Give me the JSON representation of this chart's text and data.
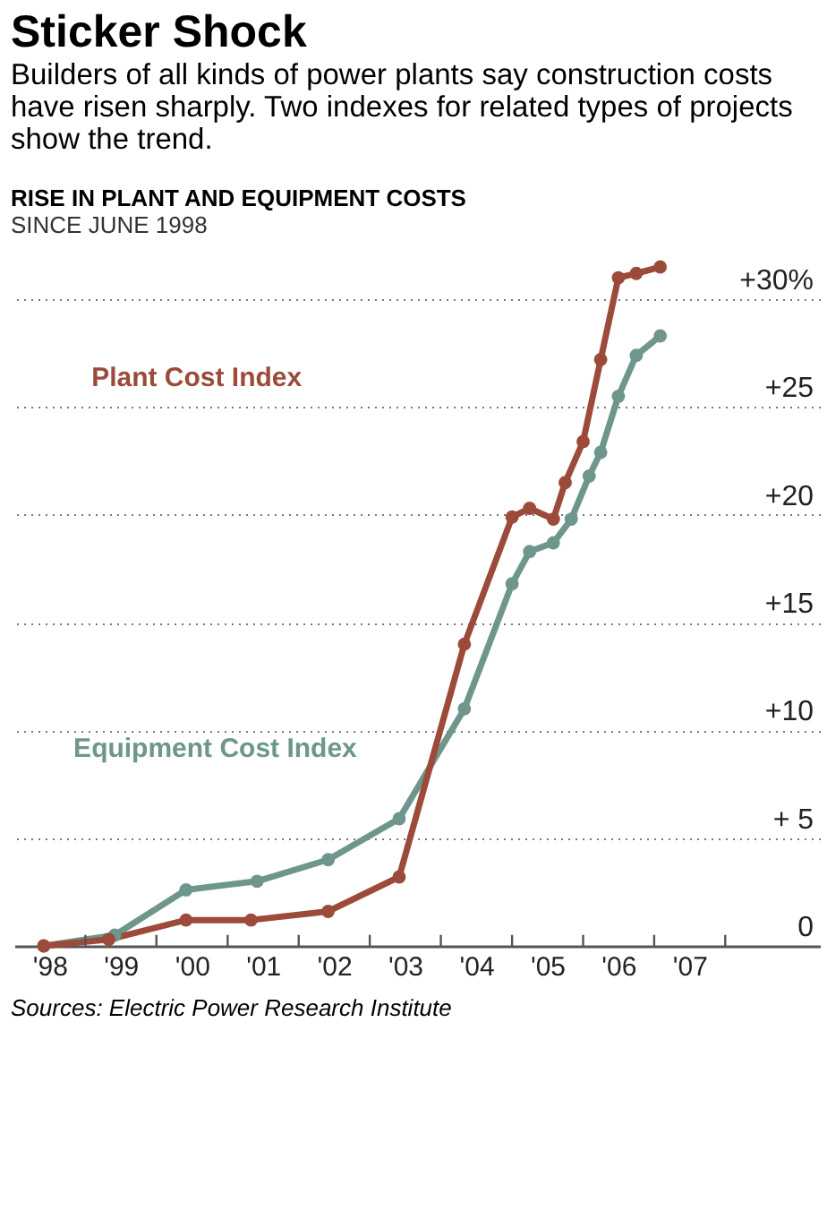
{
  "chart_data": {
    "type": "line",
    "title": "Sticker Shock",
    "subtitle": "Builders of all kinds of power plants say construction costs have risen sharply. Two indexes for related types of projects show the trend.",
    "ylabel": "RISE IN PLANT AND EQUIPMENT COSTS",
    "annotations": [
      "SINCE JUNE 1998",
      "Sources: Electric Power Research Institute"
    ],
    "series": [
      {
        "name": "Equipment Cost Index",
        "color": "#6e968c",
        "x": [
          "1998-06",
          "1999-06",
          "2000-06",
          "2001-06",
          "2002-06",
          "2003-06",
          "2004-05",
          "2005-01",
          "2005-04",
          "2005-08",
          "2005-11",
          "2006-02",
          "2006-04",
          "2006-07",
          "2006-10",
          "2007-02"
        ],
        "values": [
          0,
          0.5,
          2.6,
          3.0,
          4.0,
          5.9,
          11.0,
          16.8,
          18.3,
          18.7,
          19.8,
          21.8,
          22.9,
          25.5,
          27.4,
          28.3
        ]
      },
      {
        "name": "Plant Cost Index",
        "color": "#9c4a3a",
        "x": [
          "1998-06",
          "1999-05",
          "2000-06",
          "2001-05",
          "2002-06",
          "2003-06",
          "2004-05",
          "2005-01",
          "2005-04",
          "2005-08",
          "2005-10",
          "2006-01",
          "2006-04",
          "2006-07",
          "2006-10",
          "2007-02"
        ],
        "values": [
          0,
          0.3,
          1.2,
          1.2,
          1.6,
          3.2,
          14.0,
          19.9,
          20.3,
          19.8,
          21.5,
          23.4,
          27.2,
          31.0,
          31.2,
          31.5
        ]
      }
    ],
    "xlim": [
      "1998-01",
      "2009-05"
    ],
    "xticks": [
      {
        "value": "1998-07",
        "label": "'98"
      },
      {
        "value": "1999-01",
        "label": null
      },
      {
        "value": "1999-07",
        "label": "'99"
      },
      {
        "value": "2000-01",
        "label": null
      },
      {
        "value": "2000-07",
        "label": "'00"
      },
      {
        "value": "2001-01",
        "label": null
      },
      {
        "value": "2001-07",
        "label": "'01"
      },
      {
        "value": "2002-01",
        "label": null
      },
      {
        "value": "2002-07",
        "label": "'02"
      },
      {
        "value": "2003-01",
        "label": null
      },
      {
        "value": "2003-07",
        "label": "'03"
      },
      {
        "value": "2004-01",
        "label": null
      },
      {
        "value": "2004-07",
        "label": "'04"
      },
      {
        "value": "2005-01",
        "label": null
      },
      {
        "value": "2005-07",
        "label": "'05"
      },
      {
        "value": "2006-01",
        "label": null
      },
      {
        "value": "2006-07",
        "label": "'06"
      },
      {
        "value": "2007-01",
        "label": null
      },
      {
        "value": "2007-07",
        "label": "'07"
      },
      {
        "value": "2008-01",
        "label": null
      }
    ],
    "ylim": [
      0,
      32
    ],
    "yticks": [
      {
        "value": 0,
        "label": "0"
      },
      {
        "value": 5,
        "label": "+ 5"
      },
      {
        "value": 10,
        "label": "+10"
      },
      {
        "value": 15,
        "label": "+15"
      },
      {
        "value": 20,
        "label": "+20"
      },
      {
        "value": 25,
        "label": "+25"
      },
      {
        "value": 30,
        "label": "+30%"
      }
    ],
    "grid": "y",
    "marker": "circle",
    "line_style": "solid",
    "legend": false
  }
}
